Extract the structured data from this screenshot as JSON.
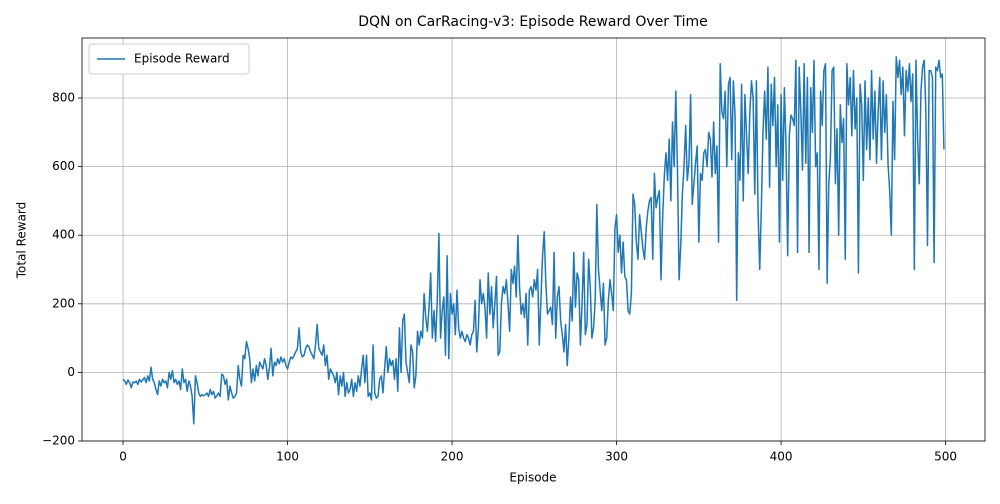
{
  "chart_data": {
    "type": "line",
    "title": "DQN on CarRacing-v3: Episode Reward Over Time",
    "x_label": "Episode",
    "y_label": "Total Reward",
    "xlim": [
      -24.95,
      523.95
    ],
    "ylim": [
      -200,
      975
    ],
    "xticks": [
      0,
      100,
      200,
      300,
      400,
      500
    ],
    "yticks": [
      {
        "value": -200,
        "label": "−200"
      },
      0,
      200,
      400,
      600,
      800
    ],
    "grid": true,
    "legend": "upper left",
    "x": [
      0,
      1,
      2,
      3,
      4,
      5,
      6,
      7,
      8,
      9,
      10,
      11,
      12,
      13,
      14,
      15,
      16,
      17,
      18,
      19,
      20,
      21,
      22,
      23,
      24,
      25,
      26,
      27,
      28,
      29,
      30,
      31,
      32,
      33,
      34,
      35,
      36,
      37,
      38,
      39,
      40,
      41,
      42,
      43,
      44,
      45,
      46,
      47,
      48,
      49,
      50,
      51,
      52,
      53,
      54,
      55,
      56,
      57,
      58,
      59,
      60,
      61,
      62,
      63,
      64,
      65,
      66,
      67,
      68,
      69,
      70,
      71,
      72,
      73,
      74,
      75,
      76,
      77,
      78,
      79,
      80,
      81,
      82,
      83,
      84,
      85,
      86,
      87,
      88,
      89,
      90,
      91,
      92,
      93,
      94,
      95,
      96,
      97,
      98,
      99,
      100,
      101,
      102,
      103,
      104,
      105,
      106,
      107,
      108,
      109,
      110,
      111,
      112,
      113,
      114,
      115,
      116,
      117,
      118,
      119,
      120,
      121,
      122,
      123,
      124,
      125,
      126,
      127,
      128,
      129,
      130,
      131,
      132,
      133,
      134,
      135,
      136,
      137,
      138,
      139,
      140,
      141,
      142,
      143,
      144,
      145,
      146,
      147,
      148,
      149,
      150,
      151,
      152,
      153,
      154,
      155,
      156,
      157,
      158,
      159,
      160,
      161,
      162,
      163,
      164,
      165,
      166,
      167,
      168,
      169,
      170,
      171,
      172,
      173,
      174,
      175,
      176,
      177,
      178,
      179,
      180,
      181,
      182,
      183,
      184,
      185,
      186,
      187,
      188,
      189,
      190,
      191,
      192,
      193,
      194,
      195,
      196,
      197,
      198,
      199,
      200,
      201,
      202,
      203,
      204,
      205,
      206,
      207,
      208,
      209,
      210,
      211,
      212,
      213,
      214,
      215,
      216,
      217,
      218,
      219,
      220,
      221,
      222,
      223,
      224,
      225,
      226,
      227,
      228,
      229,
      230,
      231,
      232,
      233,
      234,
      235,
      236,
      237,
      238,
      239,
      240,
      241,
      242,
      243,
      244,
      245,
      246,
      247,
      248,
      249,
      250,
      251,
      252,
      253,
      254,
      255,
      256,
      257,
      258,
      259,
      260,
      261,
      262,
      263,
      264,
      265,
      266,
      267,
      268,
      269,
      270,
      271,
      272,
      273,
      274,
      275,
      276,
      277,
      278,
      279,
      280,
      281,
      282,
      283,
      284,
      285,
      286,
      287,
      288,
      289,
      290,
      291,
      292,
      293,
      294,
      295,
      296,
      297,
      298,
      299,
      300,
      301,
      302,
      303,
      304,
      305,
      306,
      307,
      308,
      309,
      310,
      311,
      312,
      313,
      314,
      315,
      316,
      317,
      318,
      319,
      320,
      321,
      322,
      323,
      324,
      325,
      326,
      327,
      328,
      329,
      330,
      331,
      332,
      333,
      334,
      335,
      336,
      337,
      338,
      339,
      340,
      341,
      342,
      343,
      344,
      345,
      346,
      347,
      348,
      349,
      350,
      351,
      352,
      353,
      354,
      355,
      356,
      357,
      358,
      359,
      360,
      361,
      362,
      363,
      364,
      365,
      366,
      367,
      368,
      369,
      370,
      371,
      372,
      373,
      374,
      375,
      376,
      377,
      378,
      379,
      380,
      381,
      382,
      383,
      384,
      385,
      386,
      387,
      388,
      389,
      390,
      391,
      392,
      393,
      394,
      395,
      396,
      397,
      398,
      399,
      400,
      401,
      402,
      403,
      404,
      405,
      406,
      407,
      408,
      409,
      410,
      411,
      412,
      413,
      414,
      415,
      416,
      417,
      418,
      419,
      420,
      421,
      422,
      423,
      424,
      425,
      426,
      427,
      428,
      429,
      430,
      431,
      432,
      433,
      434,
      435,
      436,
      437,
      438,
      439,
      440,
      441,
      442,
      443,
      444,
      445,
      446,
      447,
      448,
      449,
      450,
      451,
      452,
      453,
      454,
      455,
      456,
      457,
      458,
      459,
      460,
      461,
      462,
      463,
      464,
      465,
      466,
      467,
      468,
      469,
      470,
      471,
      472,
      473,
      474,
      475,
      476,
      477,
      478,
      479,
      480,
      481,
      482,
      483,
      484,
      485,
      486,
      487,
      488,
      489,
      490,
      491,
      492,
      493,
      494,
      495,
      496,
      497,
      498,
      499
    ],
    "series": [
      {
        "name": "Episode Reward",
        "color": "#1f77b4",
        "values": [
          -20,
          -25,
          -35,
          -22,
          -30,
          -45,
          -28,
          -30,
          -25,
          -35,
          -20,
          -28,
          -22,
          -15,
          -30,
          -10,
          -25,
          15,
          -20,
          -30,
          -50,
          -65,
          -25,
          -40,
          -20,
          -30,
          -25,
          -45,
          0,
          -20,
          5,
          -30,
          -20,
          -35,
          -25,
          -50,
          10,
          -30,
          -20,
          -55,
          -25,
          -40,
          -70,
          -150,
          -10,
          -30,
          -60,
          -70,
          -65,
          -68,
          -65,
          -60,
          -70,
          -50,
          -65,
          -55,
          -75,
          -68,
          -60,
          -70,
          -5,
          -10,
          -35,
          -20,
          -80,
          -40,
          -60,
          -75,
          -70,
          -60,
          20,
          -20,
          -40,
          50,
          40,
          90,
          70,
          40,
          -30,
          10,
          -25,
          20,
          -10,
          30,
          20,
          10,
          40,
          20,
          -20,
          15,
          70,
          -10,
          30,
          20,
          40,
          25,
          45,
          30,
          40,
          20,
          10,
          30,
          45,
          40,
          50,
          60,
          70,
          130,
          60,
          45,
          50,
          70,
          80,
          75,
          60,
          50,
          40,
          80,
          140,
          70,
          60,
          50,
          80,
          20,
          50,
          -20,
          10,
          0,
          -10,
          -30,
          0,
          -65,
          -10,
          -40,
          0,
          -70,
          -30,
          -60,
          -50,
          -20,
          -70,
          -30,
          -55,
          -10,
          -40,
          10,
          50,
          -30,
          50,
          -70,
          -60,
          -80,
          80,
          -60,
          -75,
          -70,
          -20,
          -10,
          -60,
          10,
          75,
          0,
          40,
          20,
          35,
          -20,
          40,
          -55,
          130,
          0,
          150,
          170,
          30,
          0,
          -30,
          80,
          60,
          -45,
          -10,
          120,
          80,
          120,
          100,
          230,
          160,
          120,
          190,
          290,
          100,
          180,
          90,
          210,
          405,
          100,
          180,
          220,
          50,
          340,
          40,
          230,
          170,
          200,
          110,
          240,
          130,
          100,
          120,
          100,
          90,
          110,
          100,
          80,
          110,
          120,
          210,
          60,
          130,
          270,
          200,
          230,
          190,
          100,
          290,
          170,
          250,
          130,
          200,
          280,
          50,
          60,
          200,
          250,
          230,
          270,
          200,
          120,
          300,
          260,
          310,
          220,
          400,
          250,
          170,
          200,
          160,
          230,
          80,
          240,
          250,
          220,
          270,
          240,
          300,
          80,
          210,
          340,
          410,
          260,
          170,
          180,
          190,
          140,
          350,
          100,
          220,
          250,
          150,
          110,
          60,
          140,
          20,
          100,
          220,
          150,
          350,
          190,
          290,
          270,
          80,
          200,
          350,
          110,
          140,
          330,
          250,
          100,
          130,
          210,
          490,
          300,
          240,
          180,
          260,
          80,
          100,
          210,
          270,
          230,
          180,
          420,
          460,
          350,
          400,
          290,
          380,
          280,
          270,
          180,
          170,
          230,
          520,
          490,
          380,
          330,
          460,
          410,
          360,
          330,
          420,
          470,
          500,
          510,
          330,
          580,
          480,
          510,
          530,
          270,
          450,
          570,
          640,
          560,
          680,
          500,
          730,
          600,
          820,
          590,
          270,
          370,
          520,
          600,
          720,
          560,
          610,
          810,
          490,
          550,
          610,
          660,
          380,
          580,
          560,
          640,
          650,
          600,
          700,
          680,
          570,
          730,
          580,
          660,
          380,
          900,
          760,
          740,
          820,
          600,
          840,
          860,
          620,
          850,
          750,
          210,
          640,
          560,
          840,
          500,
          810,
          690,
          580,
          760,
          850,
          800,
          520,
          850,
          470,
          300,
          480,
          700,
          820,
          680,
          890,
          540,
          840,
          720,
          860,
          600,
          780,
          380,
          810,
          560,
          830,
          660,
          340,
          690,
          750,
          740,
          720,
          910,
          350,
          890,
          760,
          590,
          900,
          610,
          860,
          350,
          830,
          700,
          910,
          600,
          640,
          300,
          820,
          720,
          880,
          900,
          260,
          550,
          630,
          880,
          890,
          550,
          710,
          400,
          780,
          670,
          740,
          330,
          900,
          780,
          860,
          690,
          880,
          710,
          800,
          290,
          840,
          780,
          560,
          850,
          650,
          800,
          620,
          880,
          680,
          820,
          610,
          760,
          860,
          620,
          850,
          700,
          810,
          610,
          530,
          400,
          790,
          620,
          920,
          860,
          910,
          810,
          890,
          690,
          880,
          820,
          900,
          790,
          870,
          300,
          910,
          680,
          550,
          820,
          890,
          910,
          760,
          370,
          880,
          880,
          860,
          320,
          890,
          880,
          910,
          860,
          870,
          650
        ]
      }
    ]
  }
}
